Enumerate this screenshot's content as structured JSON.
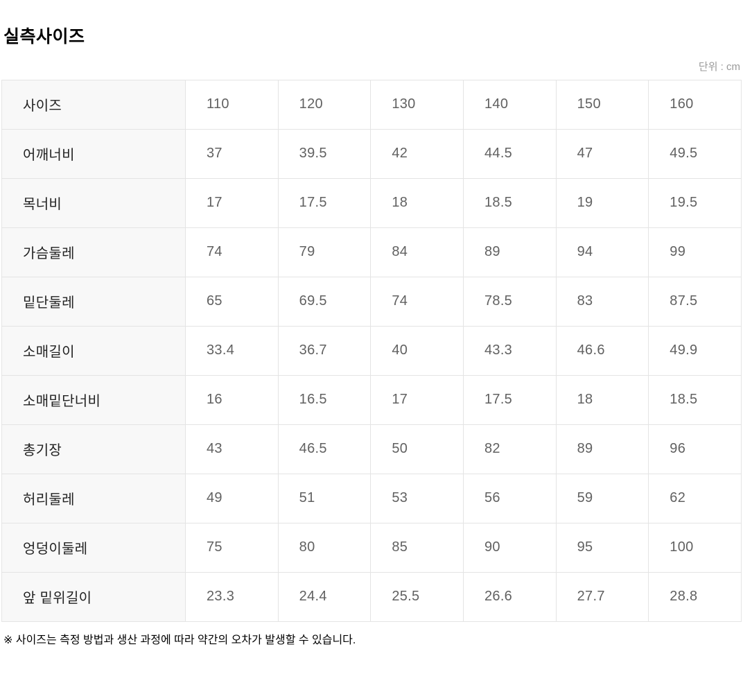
{
  "title": "실측사이즈",
  "unit_label": "단위 : cm",
  "note": "※ 사이즈는 측정 방법과 생산 과정에 따라 약간의 오차가 발생할 수 있습니다.",
  "colors": {
    "label_bg": "#f8f8f8",
    "border": "#e4e4e4",
    "label_text": "#222222",
    "value_text": "#616161",
    "muted_text": "#999999"
  },
  "chart_data": {
    "type": "table",
    "title": "실측사이즈",
    "unit": "cm",
    "size_columns": [
      "110",
      "120",
      "130",
      "140",
      "150",
      "160"
    ],
    "rows": [
      {
        "label": "사이즈",
        "values": [
          "110",
          "120",
          "130",
          "140",
          "150",
          "160"
        ]
      },
      {
        "label": "어깨너비",
        "values": [
          "37",
          "39.5",
          "42",
          "44.5",
          "47",
          "49.5"
        ]
      },
      {
        "label": "목너비",
        "values": [
          "17",
          "17.5",
          "18",
          "18.5",
          "19",
          "19.5"
        ]
      },
      {
        "label": "가슴둘레",
        "values": [
          "74",
          "79",
          "84",
          "89",
          "94",
          "99"
        ]
      },
      {
        "label": "밑단둘레",
        "values": [
          "65",
          "69.5",
          "74",
          "78.5",
          "83",
          "87.5"
        ]
      },
      {
        "label": "소매길이",
        "values": [
          "33.4",
          "36.7",
          "40",
          "43.3",
          "46.6",
          "49.9"
        ]
      },
      {
        "label": "소매밑단너비",
        "values": [
          "16",
          "16.5",
          "17",
          "17.5",
          "18",
          "18.5"
        ]
      },
      {
        "label": "총기장",
        "values": [
          "43",
          "46.5",
          "50",
          "82",
          "89",
          "96"
        ]
      },
      {
        "label": "허리둘레",
        "values": [
          "49",
          "51",
          "53",
          "56",
          "59",
          "62"
        ]
      },
      {
        "label": "엉덩이둘레",
        "values": [
          "75",
          "80",
          "85",
          "90",
          "95",
          "100"
        ]
      },
      {
        "label": "앞 밑위길이",
        "values": [
          "23.3",
          "24.4",
          "25.5",
          "26.6",
          "27.7",
          "28.8"
        ]
      }
    ]
  }
}
